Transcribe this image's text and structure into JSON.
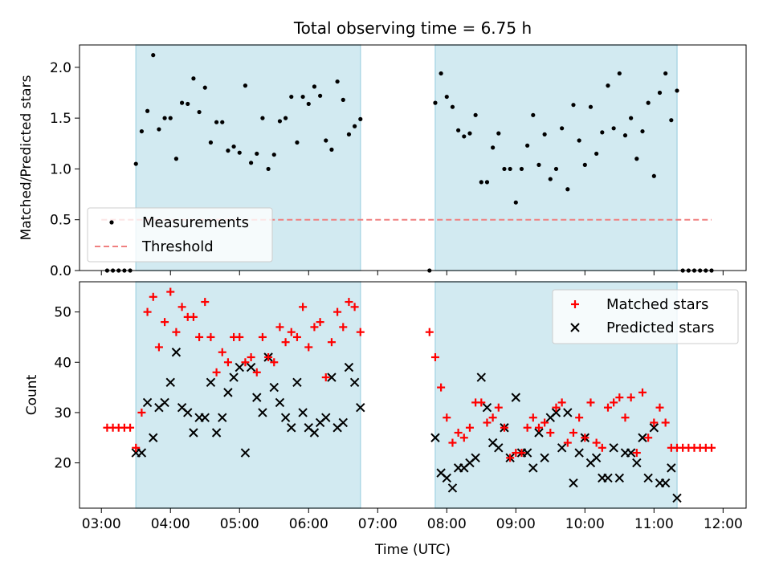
{
  "figure": {
    "title": "Total observing time = 6.75 h"
  },
  "colors": {
    "band": "#add8e6",
    "measurement": "#000000",
    "threshold": "#f08080",
    "matched": "#ff0000",
    "predicted": "#000000"
  },
  "chart_data": [
    {
      "type": "scatter",
      "title": "Total observing time = 6.75 h",
      "xlabel": "",
      "ylabel": "Matched/Predicted stars",
      "xlim": [
        "02:41",
        "12:20"
      ],
      "ylim": [
        0,
        2.22
      ],
      "yticks": [
        0.0,
        0.5,
        1.0,
        1.5,
        2.0
      ],
      "xticks": [
        "03:00",
        "04:00",
        "05:00",
        "06:00",
        "07:00",
        "08:00",
        "09:00",
        "10:00",
        "11:00",
        "12:00"
      ],
      "shaded_intervals": [
        [
          "03:30",
          "06:45"
        ],
        [
          "07:50",
          "11:20"
        ]
      ],
      "legend": {
        "placement": "lower-left",
        "entries": [
          "Measurements",
          "Threshold"
        ]
      },
      "threshold": {
        "name": "Threshold",
        "y": 0.5,
        "x_range": [
          "03:00",
          "11:50"
        ]
      },
      "series": [
        {
          "name": "Measurements",
          "x": [
            "03:05",
            "03:10",
            "03:15",
            "03:20",
            "03:25",
            "03:30",
            "03:35",
            "03:40",
            "03:45",
            "03:50",
            "03:55",
            "04:00",
            "04:05",
            "04:10",
            "04:15",
            "04:20",
            "04:25",
            "04:30",
            "04:35",
            "04:40",
            "04:45",
            "04:50",
            "04:55",
            "05:00",
            "05:05",
            "05:10",
            "05:15",
            "05:20",
            "05:25",
            "05:30",
            "05:35",
            "05:40",
            "05:45",
            "05:50",
            "05:55",
            "06:00",
            "06:05",
            "06:10",
            "06:15",
            "06:20",
            "06:25",
            "06:30",
            "06:35",
            "06:40",
            "06:45",
            "07:45",
            "07:50",
            "07:55",
            "08:00",
            "08:05",
            "08:10",
            "08:15",
            "08:20",
            "08:25",
            "08:30",
            "08:35",
            "08:40",
            "08:45",
            "08:50",
            "08:55",
            "09:00",
            "09:05",
            "09:10",
            "09:15",
            "09:20",
            "09:25",
            "09:30",
            "09:35",
            "09:40",
            "09:45",
            "09:50",
            "09:55",
            "10:00",
            "10:05",
            "10:10",
            "10:15",
            "10:20",
            "10:25",
            "10:30",
            "10:35",
            "10:40",
            "10:45",
            "10:50",
            "10:55",
            "11:00",
            "11:05",
            "11:10",
            "11:15",
            "11:20",
            "11:25",
            "11:30",
            "11:35",
            "11:40",
            "11:45",
            "11:50"
          ],
          "y": [
            0,
            0,
            0,
            0,
            0,
            1.05,
            1.37,
            1.57,
            2.12,
            1.39,
            1.5,
            1.5,
            1.1,
            1.65,
            1.64,
            1.89,
            1.56,
            1.8,
            1.26,
            1.46,
            1.46,
            1.18,
            1.22,
            1.16,
            1.82,
            1.06,
            1.15,
            1.5,
            1.0,
            1.14,
            1.47,
            1.5,
            1.71,
            1.26,
            1.71,
            1.64,
            1.81,
            1.72,
            1.28,
            1.19,
            1.86,
            1.68,
            1.34,
            1.42,
            1.49,
            0,
            1.65,
            1.94,
            1.71,
            1.61,
            1.38,
            1.32,
            1.35,
            1.53,
            0.87,
            0.87,
            1.21,
            1.35,
            1.0,
            1.0,
            0.67,
            1.0,
            1.23,
            1.53,
            1.04,
            1.34,
            0.9,
            1.0,
            1.4,
            0.8,
            1.63,
            1.28,
            1.04,
            1.61,
            1.15,
            1.36,
            1.82,
            1.4,
            1.94,
            1.33,
            1.5,
            1.1,
            1.37,
            1.65,
            0.93,
            1.75,
            1.94,
            1.48,
            1.77,
            0,
            0,
            0,
            0,
            0,
            0
          ]
        }
      ]
    },
    {
      "type": "scatter",
      "xlabel": "Time (UTC)",
      "ylabel": "Count",
      "xlim": [
        "02:41",
        "12:20"
      ],
      "ylim": [
        11,
        56
      ],
      "yticks": [
        20,
        30,
        40,
        50
      ],
      "xticks": [
        "03:00",
        "04:00",
        "05:00",
        "06:00",
        "07:00",
        "08:00",
        "09:00",
        "10:00",
        "11:00",
        "12:00"
      ],
      "shaded_intervals": [
        [
          "03:30",
          "06:45"
        ],
        [
          "07:50",
          "11:20"
        ]
      ],
      "legend": {
        "placement": "top-right",
        "entries": [
          "Matched stars",
          "Predicted stars"
        ]
      },
      "series": [
        {
          "name": "Matched stars",
          "x": [
            "03:05",
            "03:10",
            "03:15",
            "03:20",
            "03:25",
            "03:30",
            "03:35",
            "03:40",
            "03:45",
            "03:50",
            "03:55",
            "04:00",
            "04:05",
            "04:10",
            "04:15",
            "04:20",
            "04:25",
            "04:30",
            "04:35",
            "04:40",
            "04:45",
            "04:50",
            "04:55",
            "05:00",
            "05:05",
            "05:10",
            "05:15",
            "05:20",
            "05:25",
            "05:30",
            "05:35",
            "05:40",
            "05:45",
            "05:50",
            "05:55",
            "06:00",
            "06:05",
            "06:10",
            "06:15",
            "06:20",
            "06:25",
            "06:30",
            "06:35",
            "06:40",
            "06:45",
            "07:45",
            "07:50",
            "07:55",
            "08:00",
            "08:05",
            "08:10",
            "08:15",
            "08:20",
            "08:25",
            "08:30",
            "08:35",
            "08:40",
            "08:45",
            "08:50",
            "08:55",
            "09:00",
            "09:05",
            "09:10",
            "09:15",
            "09:20",
            "09:25",
            "09:30",
            "09:35",
            "09:40",
            "09:45",
            "09:50",
            "09:55",
            "10:00",
            "10:05",
            "10:10",
            "10:15",
            "10:20",
            "10:25",
            "10:30",
            "10:35",
            "10:40",
            "10:45",
            "10:50",
            "10:55",
            "11:00",
            "11:05",
            "11:10",
            "11:15",
            "11:20",
            "11:25",
            "11:30",
            "11:35",
            "11:40",
            "11:45",
            "11:50"
          ],
          "y": [
            27,
            27,
            27,
            27,
            27,
            23,
            30,
            50,
            53,
            43,
            48,
            54,
            46,
            51,
            49,
            49,
            45,
            52,
            45,
            38,
            42,
            40,
            45,
            45,
            40,
            41,
            38,
            45,
            41,
            40,
            47,
            44,
            46,
            45,
            51,
            43,
            47,
            48,
            37,
            44,
            50,
            47,
            52,
            51,
            46,
            46,
            41,
            35,
            29,
            24,
            26,
            25,
            27,
            32,
            32,
            28,
            29,
            31,
            27,
            21,
            22,
            22,
            27,
            29,
            27,
            28,
            26,
            31,
            32,
            24,
            26,
            29,
            25,
            32,
            24,
            23,
            31,
            32,
            33,
            29,
            33,
            22,
            34,
            25,
            28,
            31,
            28,
            23,
            23,
            23,
            23,
            23,
            23,
            23,
            23
          ]
        },
        {
          "name": "Predicted stars",
          "x": [
            "03:30",
            "03:35",
            "03:40",
            "03:45",
            "03:50",
            "03:55",
            "04:00",
            "04:05",
            "04:10",
            "04:15",
            "04:20",
            "04:25",
            "04:30",
            "04:35",
            "04:40",
            "04:45",
            "04:50",
            "04:55",
            "05:00",
            "05:05",
            "05:10",
            "05:15",
            "05:20",
            "05:25",
            "05:30",
            "05:35",
            "05:40",
            "05:45",
            "05:50",
            "05:55",
            "06:00",
            "06:05",
            "06:10",
            "06:15",
            "06:20",
            "06:25",
            "06:30",
            "06:35",
            "06:40",
            "06:45",
            "07:50",
            "07:55",
            "08:00",
            "08:05",
            "08:10",
            "08:15",
            "08:20",
            "08:25",
            "08:30",
            "08:35",
            "08:40",
            "08:45",
            "08:50",
            "08:55",
            "09:00",
            "09:05",
            "09:10",
            "09:15",
            "09:20",
            "09:25",
            "09:30",
            "09:35",
            "09:40",
            "09:45",
            "09:50",
            "09:55",
            "10:00",
            "10:05",
            "10:10",
            "10:15",
            "10:20",
            "10:25",
            "10:30",
            "10:35",
            "10:40",
            "10:45",
            "10:50",
            "10:55",
            "11:00",
            "11:05",
            "11:10",
            "11:15",
            "11:20"
          ],
          "y": [
            22,
            22,
            32,
            25,
            31,
            32,
            36,
            42,
            31,
            30,
            26,
            29,
            29,
            36,
            26,
            29,
            34,
            37,
            39,
            22,
            39,
            33,
            30,
            41,
            35,
            32,
            29,
            27,
            36,
            30,
            27,
            26,
            28,
            29,
            37,
            27,
            28,
            39,
            36,
            31,
            25,
            18,
            17,
            15,
            19,
            19,
            20,
            21,
            37,
            31,
            24,
            23,
            27,
            21,
            33,
            22,
            22,
            19,
            26,
            21,
            29,
            30,
            23,
            30,
            16,
            22,
            25,
            20,
            21,
            17,
            17,
            23,
            17,
            22,
            22,
            20,
            25,
            17,
            27,
            16,
            16,
            19,
            13
          ]
        }
      ]
    }
  ]
}
